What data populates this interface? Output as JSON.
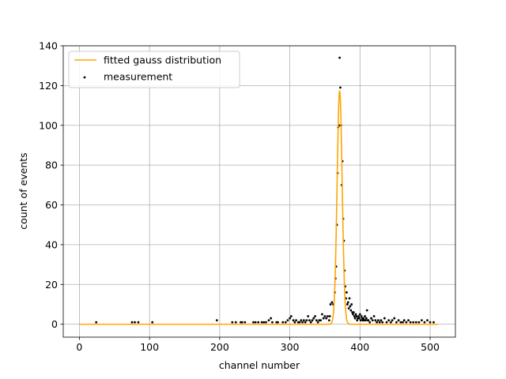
{
  "chart_data": {
    "type": "scatter",
    "title": "",
    "xlabel": "channel number",
    "ylabel": "count of events",
    "xlim": [
      -23,
      536
    ],
    "ylim": [
      -6.5,
      140
    ],
    "xticks": [
      0,
      100,
      200,
      300,
      400,
      500
    ],
    "yticks": [
      0,
      20,
      40,
      60,
      80,
      100,
      120,
      140
    ],
    "grid": true,
    "legend_position": "top-left",
    "series": [
      {
        "name": "fitted gauss distribution",
        "kind": "line",
        "color": "#ffa500",
        "model": "gaussian",
        "amplitude": 117.5,
        "mean": 371,
        "sigma": 3.6,
        "x_range": [
          0,
          511
        ]
      },
      {
        "name": "measurement",
        "kind": "scatter",
        "color": "#000000",
        "points": [
          [
            24,
            1
          ],
          [
            75,
            1
          ],
          [
            79,
            1
          ],
          [
            84,
            1
          ],
          [
            104,
            1
          ],
          [
            196,
            2
          ],
          [
            218,
            1
          ],
          [
            223,
            1
          ],
          [
            230,
            1
          ],
          [
            232,
            1
          ],
          [
            236,
            1
          ],
          [
            248,
            1
          ],
          [
            251,
            1
          ],
          [
            255,
            1
          ],
          [
            260,
            1
          ],
          [
            263,
            1
          ],
          [
            266,
            1
          ],
          [
            270,
            2
          ],
          [
            273,
            3
          ],
          [
            275,
            1
          ],
          [
            281,
            1
          ],
          [
            283,
            1
          ],
          [
            290,
            1
          ],
          [
            294,
            1
          ],
          [
            297,
            2
          ],
          [
            300,
            3
          ],
          [
            302,
            4
          ],
          [
            305,
            2
          ],
          [
            307,
            1
          ],
          [
            309,
            2
          ],
          [
            312,
            1
          ],
          [
            314,
            1
          ],
          [
            316,
            2
          ],
          [
            318,
            1
          ],
          [
            320,
            2
          ],
          [
            322,
            1
          ],
          [
            324,
            2
          ],
          [
            326,
            4
          ],
          [
            328,
            2
          ],
          [
            330,
            1
          ],
          [
            332,
            2
          ],
          [
            334,
            3
          ],
          [
            336,
            4
          ],
          [
            338,
            2
          ],
          [
            340,
            1
          ],
          [
            342,
            2
          ],
          [
            344,
            2
          ],
          [
            346,
            5
          ],
          [
            348,
            3
          ],
          [
            350,
            4
          ],
          [
            352,
            3
          ],
          [
            354,
            4
          ],
          [
            356,
            2
          ],
          [
            357,
            4
          ],
          [
            358,
            10
          ],
          [
            360,
            11
          ],
          [
            362,
            10
          ],
          [
            364,
            16
          ],
          [
            365,
            23
          ],
          [
            366,
            29
          ],
          [
            367,
            50
          ],
          [
            368,
            76
          ],
          [
            369,
            99
          ],
          [
            370,
            100
          ],
          [
            371,
            134
          ],
          [
            372,
            119
          ],
          [
            373,
            100
          ],
          [
            374,
            70
          ],
          [
            375,
            82
          ],
          [
            376,
            53
          ],
          [
            377,
            42
          ],
          [
            378,
            27
          ],
          [
            379,
            19
          ],
          [
            380,
            13
          ],
          [
            381,
            16
          ],
          [
            382,
            10
          ],
          [
            383,
            11
          ],
          [
            384,
            8
          ],
          [
            385,
            13
          ],
          [
            386,
            9
          ],
          [
            387,
            7
          ],
          [
            388,
            10
          ],
          [
            389,
            6
          ],
          [
            390,
            5
          ],
          [
            391,
            6
          ],
          [
            392,
            4
          ],
          [
            393,
            3
          ],
          [
            394,
            5
          ],
          [
            395,
            4
          ],
          [
            396,
            2
          ],
          [
            397,
            3
          ],
          [
            398,
            4
          ],
          [
            399,
            3
          ],
          [
            400,
            5
          ],
          [
            401,
            2
          ],
          [
            402,
            4
          ],
          [
            403,
            3
          ],
          [
            404,
            2
          ],
          [
            405,
            3
          ],
          [
            406,
            2
          ],
          [
            407,
            4
          ],
          [
            408,
            2
          ],
          [
            409,
            3
          ],
          [
            410,
            7
          ],
          [
            411,
            2
          ],
          [
            412,
            2
          ],
          [
            414,
            1
          ],
          [
            416,
            3
          ],
          [
            418,
            2
          ],
          [
            420,
            4
          ],
          [
            422,
            2
          ],
          [
            424,
            1
          ],
          [
            426,
            2
          ],
          [
            428,
            1
          ],
          [
            430,
            2
          ],
          [
            432,
            1
          ],
          [
            435,
            3
          ],
          [
            438,
            1
          ],
          [
            441,
            2
          ],
          [
            444,
            1
          ],
          [
            446,
            2
          ],
          [
            449,
            3
          ],
          [
            452,
            1
          ],
          [
            455,
            2
          ],
          [
            458,
            1
          ],
          [
            461,
            1
          ],
          [
            463,
            2
          ],
          [
            466,
            1
          ],
          [
            469,
            2
          ],
          [
            472,
            1
          ],
          [
            476,
            1
          ],
          [
            480,
            1
          ],
          [
            484,
            1
          ],
          [
            488,
            2
          ],
          [
            492,
            1
          ],
          [
            496,
            2
          ],
          [
            500,
            1
          ],
          [
            505,
            1
          ]
        ]
      }
    ]
  }
}
